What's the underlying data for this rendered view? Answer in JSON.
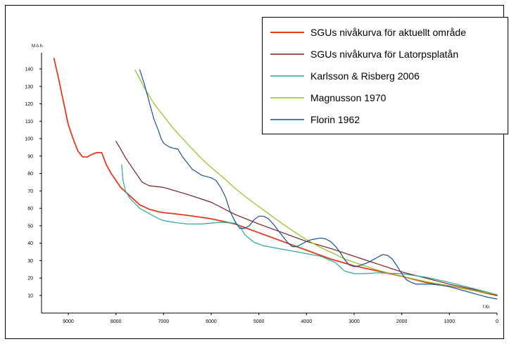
{
  "chart_data": {
    "type": "line",
    "title": "",
    "xlabel": "f.Kr.",
    "ylabel": "M.ö.h.",
    "xlim": [
      9500,
      0
    ],
    "ylim": [
      0,
      150
    ],
    "x_reversed": true,
    "x_ticks": [
      9000,
      8000,
      7000,
      6000,
      5000,
      4000,
      3000,
      2000,
      1000,
      0
    ],
    "y_ticks": [
      10,
      20,
      30,
      40,
      50,
      60,
      70,
      80,
      90,
      100,
      110,
      120,
      130,
      140
    ],
    "grid": false,
    "legend_position": "top-right",
    "series": [
      {
        "name": "SGUs nivåkurva för aktuellt område",
        "color": "#e8391d",
        "x": [
          9300,
          9200,
          9100,
          9000,
          8900,
          8800,
          8700,
          8600,
          8500,
          8400,
          8300,
          8200,
          8100,
          8000,
          7900,
          7700,
          7500,
          7300,
          7100,
          7000,
          6800,
          6500,
          6000,
          5500,
          5000,
          4500,
          4000,
          3500,
          3000,
          2500,
          2000,
          1500,
          1000,
          500,
          0
        ],
        "y": [
          146,
          134,
          121,
          108,
          100,
          93,
          89.5,
          89.5,
          91,
          92,
          92,
          85,
          80,
          76,
          72,
          67,
          62,
          59.5,
          58,
          57.5,
          57,
          56,
          54,
          51,
          46,
          41,
          36,
          31,
          27,
          24,
          21,
          17.5,
          15.5,
          13,
          10
        ]
      },
      {
        "name": "SGUs nivåkurva för Latorpsplatån",
        "color": "#7a1f1f",
        "x": [
          8000,
          7900,
          7800,
          7700,
          7600,
          7500,
          7450,
          7300,
          7000,
          6500,
          6000,
          5500,
          5000,
          4500,
          4000,
          3500,
          3000,
          2500,
          2000,
          1500,
          1000,
          500,
          0
        ],
        "y": [
          98.5,
          94,
          89,
          85,
          81,
          77,
          75,
          73,
          72,
          68,
          63.5,
          56.5,
          51,
          46,
          41,
          37,
          32.5,
          28,
          23.5,
          20,
          16.5,
          13.5,
          10
        ]
      },
      {
        "name": "Karlsson & Risberg 2006",
        "color": "#2aa79b",
        "x": [
          7880,
          7850,
          7800,
          7700,
          7500,
          7300,
          7100,
          7000,
          6800,
          6500,
          6200,
          5800,
          5500,
          5400,
          5300,
          5100,
          4900,
          4700,
          4500,
          4300,
          4000,
          3700,
          3400,
          3200,
          3000,
          2800,
          2500,
          2000,
          1500,
          1000,
          500,
          0
        ],
        "y": [
          85,
          76,
          70,
          65.5,
          60,
          57,
          54,
          53,
          52,
          51,
          51,
          52,
          51.5,
          50,
          45,
          40.5,
          38.5,
          37.5,
          36.5,
          35.5,
          34,
          32.5,
          29,
          24,
          22.5,
          22.5,
          23,
          22.5,
          20.5,
          17.5,
          14,
          10.5
        ]
      },
      {
        "name": "Magnusson 1970",
        "color": "#92c01f",
        "x": [
          7600,
          7400,
          7200,
          7000,
          6800,
          6500,
          6200,
          6000,
          5700,
          5500,
          5200,
          5000,
          4700,
          4500,
          4200,
          4000,
          3700,
          3500,
          3200,
          3000,
          2500,
          2000,
          1500,
          1000,
          500,
          0
        ],
        "y": [
          139.5,
          129,
          120,
          113,
          106,
          97,
          88.5,
          83.5,
          76.5,
          71.5,
          65,
          61,
          55,
          51,
          45.5,
          42,
          37.5,
          35,
          31,
          29,
          24.5,
          21,
          18,
          15.5,
          13,
          10.5
        ]
      },
      {
        "name": "Florin 1962",
        "color": "#1a4f9c",
        "x": [
          7500,
          7400,
          7300,
          7200,
          7100,
          7050,
          7000,
          6900,
          6800,
          6700,
          6600,
          6500,
          6400,
          6200,
          6000,
          5900,
          5800,
          5700,
          5600,
          5500,
          5400,
          5300,
          5200,
          5100,
          5000,
          4900,
          4800,
          4700,
          4600,
          4500,
          4400,
          4300,
          4200,
          4100,
          4000,
          3900,
          3800,
          3700,
          3600,
          3500,
          3400,
          3300,
          3200,
          3100,
          3000,
          2900,
          2800,
          2700,
          2600,
          2500,
          2400,
          2300,
          2200,
          2100,
          2000,
          1900,
          1800,
          1700,
          1600,
          1400,
          1200,
          1000,
          800,
          600,
          400,
          200,
          0
        ],
        "y": [
          139.5,
          131,
          121,
          111,
          104,
          100,
          97.5,
          95.5,
          94.5,
          94,
          89.5,
          86,
          82.5,
          79,
          77.5,
          76,
          72,
          66.5,
          58,
          52.5,
          48.5,
          48.5,
          50,
          53.5,
          55.5,
          55.5,
          54,
          51,
          47.5,
          44,
          40.5,
          38,
          38,
          39.5,
          41,
          42,
          42.5,
          43,
          42.5,
          41,
          38.5,
          35,
          30.5,
          27.5,
          26.5,
          27,
          28,
          29,
          30.5,
          32,
          33.5,
          33,
          31,
          27,
          22.5,
          19,
          17.5,
          16.5,
          16.5,
          16.5,
          16,
          15,
          13.5,
          12,
          10.5,
          9,
          8
        ]
      }
    ]
  }
}
